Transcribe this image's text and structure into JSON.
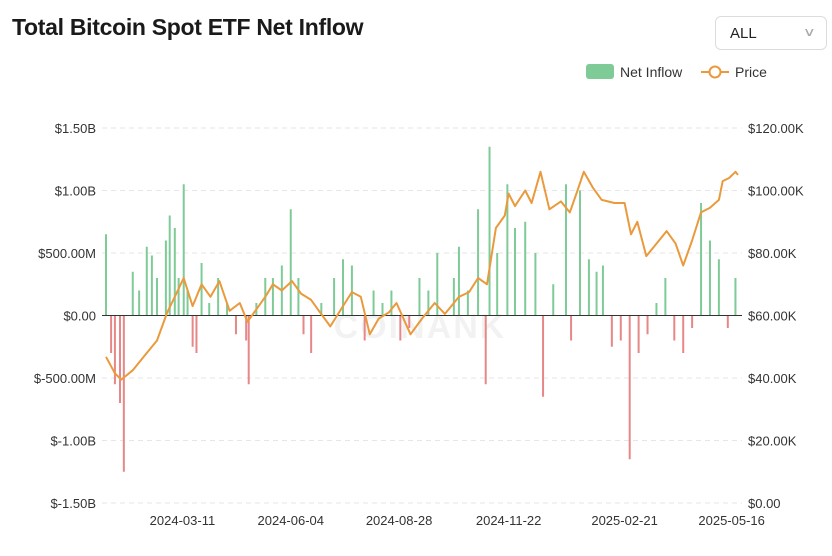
{
  "header": {
    "title": "Total Bitcoin Spot ETF Net Inflow"
  },
  "range_select": {
    "value": "ALL",
    "chevron_icon": "chevron-down-icon"
  },
  "colors": {
    "inflow": "#7fcb97",
    "outflow": "#e78787",
    "price": "#ea9a3c",
    "grid": "#e6e6e6",
    "axis": "#333333"
  },
  "chart_data": {
    "type": "bar+line",
    "title": "Total Bitcoin Spot ETF Net Inflow",
    "legend": {
      "placement": "top-right",
      "entries": [
        "Net Inflow",
        "Price"
      ]
    },
    "x_ticks": [
      "2024-03-11",
      "2024-06-04",
      "2024-08-28",
      "2024-11-22",
      "2025-02-21",
      "2025-05-16"
    ],
    "x_range": [
      "2024-01-11",
      "2025-05-21"
    ],
    "left_axis": {
      "min": -1.5,
      "max": 1.5,
      "unit": "billion USD",
      "ticks": [
        1.5,
        1.0,
        0.5,
        0,
        -0.5,
        -1.0,
        -1.5
      ],
      "tick_labels": [
        "$1.50B",
        "$1.00B",
        "$500.00M",
        "$0.00",
        "$-500.00M",
        "$-1.00B",
        "$-1.50B"
      ]
    },
    "right_axis": {
      "min": 0,
      "max": 120000,
      "unit": "USD",
      "ticks": [
        120000,
        100000,
        80000,
        60000,
        40000,
        20000,
        0
      ],
      "tick_labels": [
        "$120.00K",
        "$100.00K",
        "$80.00K",
        "$60.00K",
        "$40.00K",
        "$20.00K",
        "$0.00"
      ]
    },
    "grid": true,
    "watermark": "COINANK",
    "series": [
      {
        "name": "Net Inflow",
        "type": "bar",
        "axis": "left",
        "data": [
          [
            "2024-01-11",
            0.65
          ],
          [
            "2024-01-15",
            -0.3
          ],
          [
            "2024-01-18",
            -0.55
          ],
          [
            "2024-01-22",
            -0.7
          ],
          [
            "2024-01-25",
            -1.25
          ],
          [
            "2024-02-01",
            0.35
          ],
          [
            "2024-02-06",
            0.2
          ],
          [
            "2024-02-12",
            0.55
          ],
          [
            "2024-02-16",
            0.48
          ],
          [
            "2024-02-20",
            0.3
          ],
          [
            "2024-02-27",
            0.6
          ],
          [
            "2024-03-01",
            0.8
          ],
          [
            "2024-03-05",
            0.7
          ],
          [
            "2024-03-08",
            0.3
          ],
          [
            "2024-03-12",
            1.05
          ],
          [
            "2024-03-15",
            0.2
          ],
          [
            "2024-03-19",
            -0.25
          ],
          [
            "2024-03-22",
            -0.3
          ],
          [
            "2024-03-26",
            0.42
          ],
          [
            "2024-04-01",
            0.1
          ],
          [
            "2024-04-08",
            0.3
          ],
          [
            "2024-04-15",
            0.1
          ],
          [
            "2024-04-22",
            -0.15
          ],
          [
            "2024-04-30",
            -0.2
          ],
          [
            "2024-05-02",
            -0.55
          ],
          [
            "2024-05-08",
            0.1
          ],
          [
            "2024-05-15",
            0.3
          ],
          [
            "2024-05-21",
            0.3
          ],
          [
            "2024-05-28",
            0.4
          ],
          [
            "2024-06-04",
            0.85
          ],
          [
            "2024-06-10",
            0.3
          ],
          [
            "2024-06-14",
            -0.15
          ],
          [
            "2024-06-20",
            -0.3
          ],
          [
            "2024-06-28",
            0.1
          ],
          [
            "2024-07-08",
            0.3
          ],
          [
            "2024-07-15",
            0.45
          ],
          [
            "2024-07-22",
            0.4
          ],
          [
            "2024-08-01",
            -0.2
          ],
          [
            "2024-08-08",
            0.2
          ],
          [
            "2024-08-15",
            0.1
          ],
          [
            "2024-08-22",
            0.2
          ],
          [
            "2024-08-29",
            -0.2
          ],
          [
            "2024-09-05",
            -0.1
          ],
          [
            "2024-09-13",
            0.3
          ],
          [
            "2024-09-20",
            0.2
          ],
          [
            "2024-09-27",
            0.5
          ],
          [
            "2024-10-10",
            0.3
          ],
          [
            "2024-10-14",
            0.55
          ],
          [
            "2024-10-21",
            0.2
          ],
          [
            "2024-10-29",
            0.85
          ],
          [
            "2024-11-04",
            -0.55
          ],
          [
            "2024-11-07",
            1.35
          ],
          [
            "2024-11-13",
            0.5
          ],
          [
            "2024-11-21",
            1.05
          ],
          [
            "2024-11-27",
            0.7
          ],
          [
            "2024-12-05",
            0.75
          ],
          [
            "2024-12-13",
            0.5
          ],
          [
            "2024-12-19",
            -0.65
          ],
          [
            "2024-12-27",
            0.25
          ],
          [
            "2025-01-06",
            1.05
          ],
          [
            "2025-01-10",
            -0.2
          ],
          [
            "2025-01-17",
            1.0
          ],
          [
            "2025-01-24",
            0.45
          ],
          [
            "2025-01-30",
            0.35
          ],
          [
            "2025-02-04",
            0.4
          ],
          [
            "2025-02-11",
            -0.25
          ],
          [
            "2025-02-18",
            -0.2
          ],
          [
            "2025-02-25",
            -1.15
          ],
          [
            "2025-03-04",
            -0.3
          ],
          [
            "2025-03-11",
            -0.15
          ],
          [
            "2025-03-18",
            0.1
          ],
          [
            "2025-03-25",
            0.3
          ],
          [
            "2025-04-01",
            -0.2
          ],
          [
            "2025-04-08",
            -0.3
          ],
          [
            "2025-04-15",
            -0.1
          ],
          [
            "2025-04-22",
            0.9
          ],
          [
            "2025-04-29",
            0.6
          ],
          [
            "2025-05-06",
            0.45
          ],
          [
            "2025-05-13",
            -0.1
          ],
          [
            "2025-05-19",
            0.3
          ]
        ]
      },
      {
        "name": "Price",
        "type": "line",
        "axis": "right",
        "data": [
          [
            "2024-01-11",
            46800
          ],
          [
            "2024-01-18",
            41500
          ],
          [
            "2024-01-23",
            39500
          ],
          [
            "2024-02-01",
            42500
          ],
          [
            "2024-02-10",
            47000
          ],
          [
            "2024-02-20",
            52000
          ],
          [
            "2024-02-28",
            61000
          ],
          [
            "2024-03-05",
            66000
          ],
          [
            "2024-03-12",
            72000
          ],
          [
            "2024-03-19",
            63000
          ],
          [
            "2024-03-26",
            70000
          ],
          [
            "2024-04-02",
            66000
          ],
          [
            "2024-04-09",
            71000
          ],
          [
            "2024-04-17",
            61500
          ],
          [
            "2024-04-25",
            64000
          ],
          [
            "2024-05-01",
            58000
          ],
          [
            "2024-05-08",
            62000
          ],
          [
            "2024-05-15",
            66000
          ],
          [
            "2024-05-21",
            70000
          ],
          [
            "2024-05-28",
            68000
          ],
          [
            "2024-06-05",
            71000
          ],
          [
            "2024-06-12",
            67000
          ],
          [
            "2024-06-20",
            65000
          ],
          [
            "2024-06-27",
            61000
          ],
          [
            "2024-07-05",
            56500
          ],
          [
            "2024-07-15",
            63000
          ],
          [
            "2024-07-22",
            67500
          ],
          [
            "2024-07-29",
            66000
          ],
          [
            "2024-08-05",
            54000
          ],
          [
            "2024-08-12",
            59000
          ],
          [
            "2024-08-20",
            61000
          ],
          [
            "2024-08-26",
            64000
          ],
          [
            "2024-09-06",
            54000
          ],
          [
            "2024-09-15",
            59000
          ],
          [
            "2024-09-25",
            64000
          ],
          [
            "2024-10-03",
            60500
          ],
          [
            "2024-10-14",
            66000
          ],
          [
            "2024-10-22",
            67500
          ],
          [
            "2024-10-29",
            72000
          ],
          [
            "2024-11-05",
            70000
          ],
          [
            "2024-11-12",
            88000
          ],
          [
            "2024-11-19",
            92000
          ],
          [
            "2024-11-22",
            99000
          ],
          [
            "2024-11-27",
            95000
          ],
          [
            "2024-12-05",
            100000
          ],
          [
            "2024-12-10",
            96000
          ],
          [
            "2024-12-17",
            106000
          ],
          [
            "2024-12-24",
            94000
          ],
          [
            "2025-01-02",
            96500
          ],
          [
            "2025-01-09",
            93000
          ],
          [
            "2025-01-15",
            100000
          ],
          [
            "2025-01-20",
            106000
          ],
          [
            "2025-01-27",
            101000
          ],
          [
            "2025-02-03",
            97000
          ],
          [
            "2025-02-13",
            96000
          ],
          [
            "2025-02-21",
            96000
          ],
          [
            "2025-02-26",
            86000
          ],
          [
            "2025-03-03",
            90000
          ],
          [
            "2025-03-10",
            79000
          ],
          [
            "2025-03-18",
            83000
          ],
          [
            "2025-03-26",
            87000
          ],
          [
            "2025-04-02",
            83000
          ],
          [
            "2025-04-08",
            76000
          ],
          [
            "2025-04-15",
            84000
          ],
          [
            "2025-04-22",
            93000
          ],
          [
            "2025-04-29",
            94500
          ],
          [
            "2025-05-06",
            97000
          ],
          [
            "2025-05-09",
            103000
          ],
          [
            "2025-05-14",
            104000
          ],
          [
            "2025-05-19",
            106000
          ],
          [
            "2025-05-21",
            105000
          ]
        ]
      }
    ]
  }
}
